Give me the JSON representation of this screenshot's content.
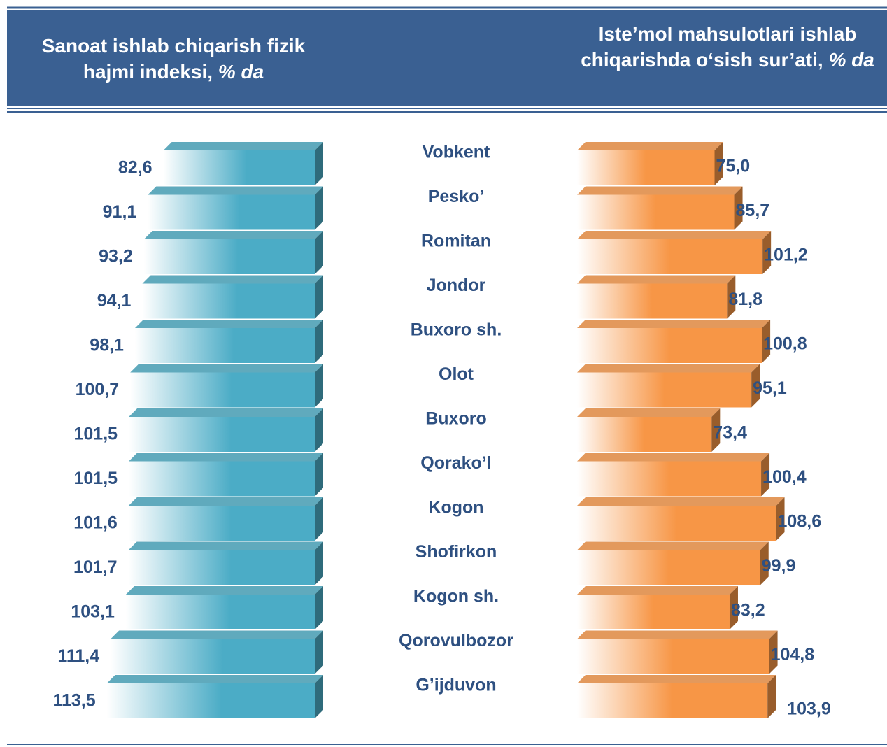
{
  "chart_data": {
    "type": "bar",
    "orientation": "horizontal",
    "categories": [
      "Vobkent",
      "Pesko’",
      "Romitan",
      "Jondor",
      "Buxoro sh.",
      "Olot",
      "Buxoro",
      "Qorako’l",
      "Kogon",
      "Shofirkon",
      "Kogon sh.",
      "Qorovulbozor",
      "G’ijduvon"
    ],
    "series": [
      {
        "name": "Sanoat ishlab chiqarish fizik hajmi indeksi,",
        "unit": "% da",
        "color": "#4bacc6",
        "values": [
          82.6,
          91.1,
          93.2,
          94.1,
          98.1,
          100.7,
          101.5,
          101.5,
          101.6,
          101.7,
          103.1,
          111.4,
          113.5
        ],
        "value_labels": [
          "82,6",
          "91,1",
          "93,2",
          "94,1",
          "98,1",
          "100,7",
          "101,5",
          "101,5",
          "101,6",
          "101,7",
          "103,1",
          "111,4",
          "113,5"
        ]
      },
      {
        "name": "Iste’mol mahsulotlari ishlab chiqarishda o‘sish sur’ati,",
        "unit": "% da",
        "color": "#f79646",
        "values": [
          75.0,
          85.7,
          101.2,
          81.8,
          100.8,
          95.1,
          73.4,
          100.4,
          108.6,
          99.9,
          83.2,
          104.8,
          103.9
        ],
        "value_labels": [
          "75,0",
          "85,7",
          "101,2",
          "81,8",
          "100,8",
          "95,1",
          "73,4",
          "100,4",
          "108,6",
          "99,9",
          "83,2",
          "104,8",
          "103,9"
        ]
      }
    ]
  }
}
